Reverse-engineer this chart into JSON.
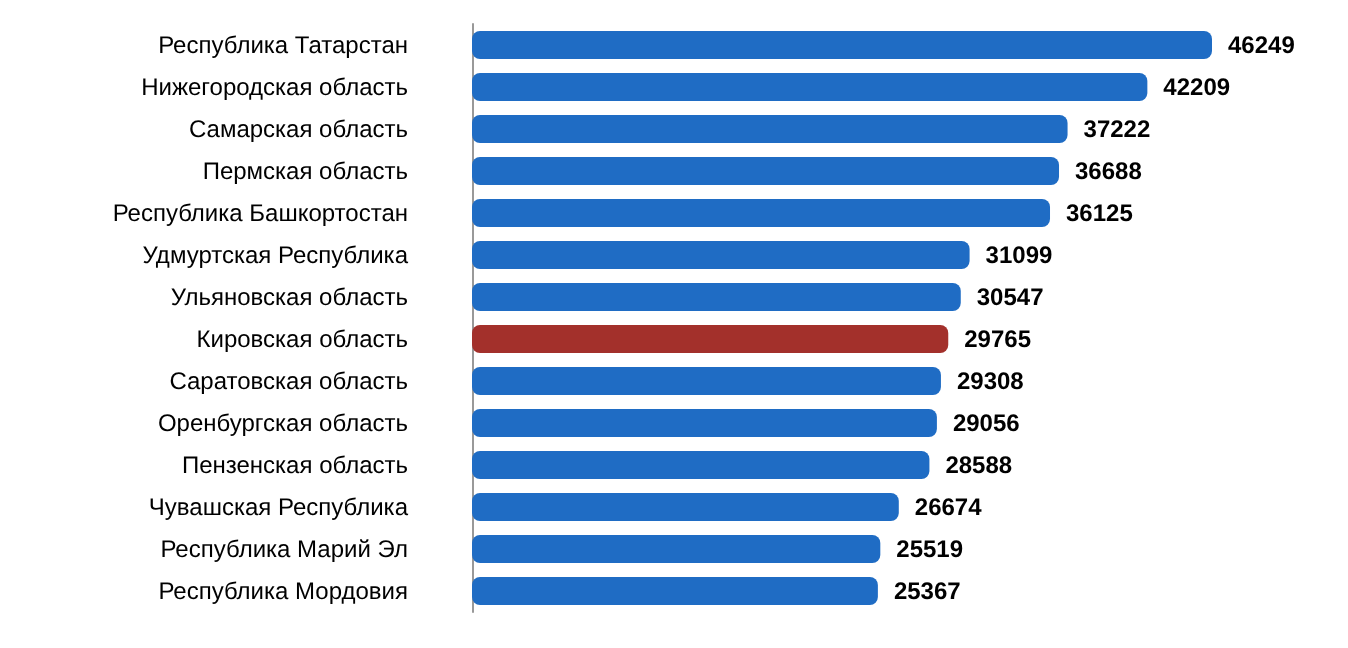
{
  "chart_data": {
    "type": "bar",
    "orientation": "horizontal",
    "data_labels": true,
    "categories": [
      "Республика Татарстан",
      "Нижегородская область",
      "Самарская область",
      "Пермская область",
      "Республика Башкортостан",
      "Удмуртская Республика",
      "Ульяновская область",
      "Кировская область",
      "Саратовская область",
      "Оренбургская область",
      "Пензенская область",
      "Чувашская Республика",
      "Республика Марий Эл",
      "Республика Мордовия"
    ],
    "values": [
      46249,
      42209,
      37222,
      36688,
      36125,
      31099,
      30547,
      29765,
      29308,
      29056,
      28588,
      26674,
      25519,
      25367
    ],
    "colors": [
      "#1f6cc4",
      "#1f6cc4",
      "#1f6cc4",
      "#1f6cc4",
      "#1f6cc4",
      "#1f6cc4",
      "#1f6cc4",
      "#a3302b",
      "#1f6cc4",
      "#1f6cc4",
      "#1f6cc4",
      "#1f6cc4",
      "#1f6cc4",
      "#1f6cc4"
    ]
  }
}
